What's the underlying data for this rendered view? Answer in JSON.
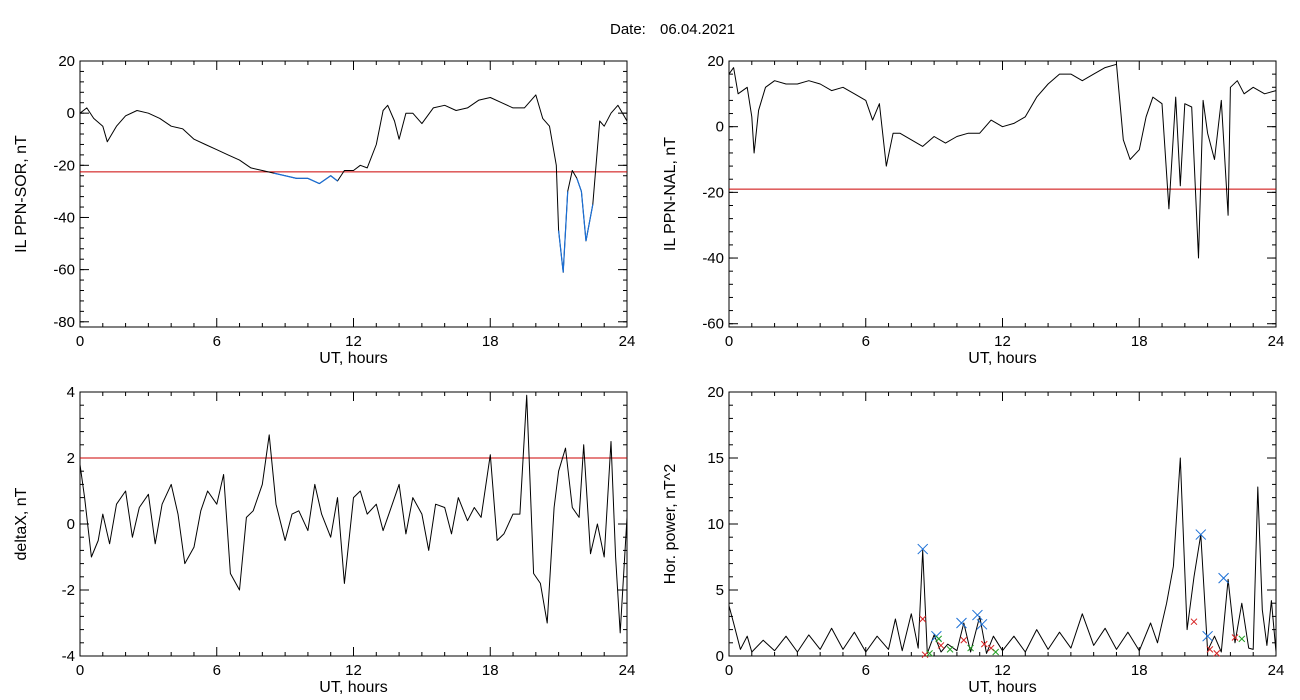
{
  "header": {
    "label": "Date:",
    "date": "06.04.2021"
  },
  "colors": {
    "trace": "#000000",
    "threshold": "#cc0000",
    "highlight": "#1a6fd6",
    "marker_blue": "#1a6fd6",
    "marker_red": "#d62020",
    "marker_green": "#22a022"
  },
  "chart_data": [
    {
      "id": "sor",
      "type": "line",
      "xlabel": "UT, hours",
      "ylabel": "IL PPN-SOR, nT",
      "xlim": [
        0,
        24
      ],
      "ylim": [
        -82,
        20
      ],
      "xticks": [
        0,
        6,
        12,
        18,
        24
      ],
      "yticks": [
        20,
        0,
        -20,
        -40,
        -60,
        -80
      ],
      "threshold": -22.5,
      "highlight_below_threshold": true,
      "x": [
        0,
        0.3,
        0.6,
        1.0,
        1.2,
        1.6,
        2.0,
        2.5,
        3.0,
        3.5,
        4.0,
        4.5,
        5.0,
        5.5,
        6.0,
        6.5,
        7.0,
        7.5,
        8.0,
        8.5,
        9.0,
        9.5,
        10.0,
        10.5,
        11.0,
        11.3,
        11.6,
        12.0,
        12.3,
        12.6,
        13.0,
        13.3,
        13.5,
        13.8,
        14.0,
        14.3,
        14.6,
        15.0,
        15.5,
        16.0,
        16.5,
        17.0,
        17.5,
        18.0,
        18.5,
        19.0,
        19.5,
        20.0,
        20.3,
        20.6,
        20.9,
        21.0,
        21.2,
        21.4,
        21.6,
        21.8,
        22.0,
        22.2,
        22.5,
        22.8,
        23.0,
        23.3,
        23.6,
        24.0
      ],
      "y": [
        0,
        2,
        -2,
        -5,
        -11,
        -5,
        -1,
        1,
        0,
        -2,
        -5,
        -6,
        -10,
        -12,
        -14,
        -16,
        -18,
        -21,
        -22,
        -23,
        -24,
        -25,
        -25,
        -27,
        -24,
        -26,
        -22,
        -22,
        -20,
        -21,
        -12,
        1,
        3,
        -3,
        -10,
        0,
        0,
        -4,
        2,
        3,
        1,
        2,
        5,
        6,
        4,
        2,
        2,
        7,
        -2,
        -5,
        -20,
        -45,
        -61,
        -30,
        -22,
        -25,
        -30,
        -49,
        -35,
        -3,
        -5,
        0,
        3,
        -3
      ],
      "x_points_note": "",
      "y_points_note": ""
    },
    {
      "id": "nal",
      "type": "line",
      "xlabel": "UT, hours",
      "ylabel": "IL PPN-NAL, nT",
      "xlim": [
        0,
        24
      ],
      "ylim": [
        -61,
        20
      ],
      "xticks": [
        0,
        6,
        12,
        18,
        24
      ],
      "yticks": [
        20,
        0,
        -20,
        -40,
        -60
      ],
      "threshold": -19,
      "highlight_below_threshold": true,
      "x": [
        0,
        0.2,
        0.4,
        0.8,
        1.0,
        1.1,
        1.3,
        1.6,
        2.0,
        2.5,
        3.0,
        3.5,
        4.0,
        4.5,
        5.0,
        5.5,
        6.0,
        6.3,
        6.6,
        6.9,
        7.2,
        7.5,
        8.0,
        8.5,
        9.0,
        9.5,
        10.0,
        10.5,
        11.0,
        11.5,
        12.0,
        12.5,
        13.0,
        13.5,
        14.0,
        14.5,
        15.0,
        15.5,
        16.0,
        16.5,
        17.0,
        17.3,
        17.6,
        18.0,
        18.3,
        18.6,
        19.0,
        19.3,
        19.6,
        19.8,
        20.0,
        20.3,
        20.6,
        20.8,
        21.0,
        21.3,
        21.6,
        21.9,
        22.0,
        22.3,
        22.6,
        23.0,
        23.5,
        24.0
      ],
      "y": [
        16,
        18,
        10,
        12,
        3,
        -8,
        5,
        12,
        14,
        13,
        13,
        14,
        13,
        11,
        12,
        10,
        8,
        2,
        7,
        -12,
        -2,
        -2,
        -4,
        -6,
        -3,
        -5,
        -3,
        -2,
        -2,
        2,
        0,
        1,
        3,
        9,
        13,
        16,
        16,
        14,
        16,
        18,
        19,
        -4,
        -10,
        -7,
        3,
        9,
        7,
        -25,
        9,
        -18,
        7,
        6,
        -40,
        8,
        -2,
        -10,
        8,
        -27,
        12,
        14,
        10,
        12,
        10,
        11
      ]
    },
    {
      "id": "deltax",
      "type": "line",
      "xlabel": "UT, hours",
      "ylabel": "deltaX, nT",
      "xlim": [
        0,
        24
      ],
      "ylim": [
        -4,
        4
      ],
      "xticks": [
        0,
        6,
        12,
        18,
        24
      ],
      "yticks": [
        4,
        2,
        0,
        -2,
        -4
      ],
      "threshold": 2,
      "highlight_below_threshold": false,
      "x": [
        0,
        0.2,
        0.5,
        0.8,
        1.0,
        1.3,
        1.6,
        2.0,
        2.3,
        2.6,
        3.0,
        3.3,
        3.6,
        4.0,
        4.3,
        4.6,
        5.0,
        5.3,
        5.6,
        6.0,
        6.3,
        6.6,
        7.0,
        7.3,
        7.6,
        8.0,
        8.3,
        8.6,
        9.0,
        9.3,
        9.6,
        10.0,
        10.3,
        10.6,
        11.0,
        11.3,
        11.6,
        12.0,
        12.3,
        12.6,
        13.0,
        13.3,
        13.6,
        14.0,
        14.3,
        14.6,
        15.0,
        15.3,
        15.6,
        16.0,
        16.3,
        16.6,
        17.0,
        17.3,
        17.6,
        18.0,
        18.3,
        18.6,
        19.0,
        19.3,
        19.6,
        19.9,
        20.2,
        20.5,
        20.8,
        21.0,
        21.3,
        21.6,
        21.9,
        22.1,
        22.4,
        22.7,
        23.0,
        23.3,
        23.5,
        23.7,
        24.0
      ],
      "y": [
        1.8,
        0.8,
        -1.0,
        -0.5,
        0.3,
        -0.6,
        0.6,
        1.0,
        -0.4,
        0.5,
        0.9,
        -0.6,
        0.6,
        1.2,
        0.3,
        -1.2,
        -0.7,
        0.4,
        1.0,
        0.6,
        1.5,
        -1.5,
        -2.0,
        0.2,
        0.4,
        1.2,
        2.7,
        0.6,
        -0.5,
        0.3,
        0.4,
        -0.2,
        1.2,
        0.3,
        -0.4,
        0.8,
        -1.8,
        0.8,
        1.0,
        0.3,
        0.6,
        -0.2,
        0.4,
        1.2,
        -0.3,
        0.8,
        0.3,
        -0.8,
        0.6,
        0.5,
        -0.3,
        0.8,
        0.1,
        0.5,
        0.2,
        2.1,
        -0.5,
        -0.3,
        0.3,
        0.3,
        3.9,
        -1.5,
        -1.8,
        -3.0,
        0.5,
        1.6,
        2.3,
        0.5,
        0.2,
        2.4,
        -0.9,
        0.0,
        -1.0,
        2.5,
        -1.0,
        -3.3,
        0.2
      ]
    },
    {
      "id": "power",
      "type": "line",
      "xlabel": "UT, hours",
      "ylabel": "Hor. power, nT^2",
      "xlim": [
        0,
        24
      ],
      "ylim": [
        0,
        20
      ],
      "xticks": [
        0,
        6,
        12,
        18,
        24
      ],
      "yticks": [
        20,
        15,
        10,
        5,
        0
      ],
      "x": [
        0,
        0.2,
        0.5,
        0.8,
        1.0,
        1.5,
        2.0,
        2.5,
        3.0,
        3.5,
        4.0,
        4.5,
        5.0,
        5.5,
        6.0,
        6.5,
        7.0,
        7.3,
        7.6,
        8.0,
        8.3,
        8.5,
        8.7,
        9.0,
        9.3,
        9.6,
        10.0,
        10.3,
        10.6,
        11.0,
        11.3,
        11.6,
        12.0,
        12.5,
        13.0,
        13.5,
        14.0,
        14.5,
        15.0,
        15.5,
        16.0,
        16.5,
        17.0,
        17.5,
        18.0,
        18.5,
        18.8,
        19.2,
        19.5,
        19.8,
        20.1,
        20.4,
        20.7,
        21.0,
        21.3,
        21.6,
        21.9,
        22.2,
        22.5,
        22.8,
        23.0,
        23.2,
        23.4,
        23.6,
        23.8,
        24.0
      ],
      "y": [
        3.8,
        2.5,
        0.5,
        1.5,
        0.3,
        1.2,
        0.4,
        1.5,
        0.3,
        1.6,
        0.5,
        2.1,
        0.5,
        1.8,
        0.3,
        1.5,
        0.5,
        2.8,
        0.4,
        3.2,
        0.6,
        8.0,
        0.2,
        1.6,
        0.3,
        0.9,
        0.4,
        2.5,
        0.3,
        3.0,
        0.2,
        1.5,
        0.4,
        1.5,
        0.3,
        2.0,
        0.5,
        1.8,
        0.6,
        3.2,
        0.8,
        2.1,
        0.5,
        1.8,
        0.4,
        2.5,
        1.0,
        4.0,
        6.8,
        15.0,
        2.0,
        6.0,
        9.2,
        0.4,
        1.5,
        0.3,
        5.8,
        1.0,
        4.0,
        0.6,
        0.5,
        12.8,
        3.5,
        0.8,
        4.2,
        0.3
      ],
      "markers": [
        {
          "x": 8.5,
          "y": 8.1,
          "color": "blue"
        },
        {
          "x": 9.1,
          "y": 1.5,
          "color": "blue"
        },
        {
          "x": 10.2,
          "y": 2.5,
          "color": "blue"
        },
        {
          "x": 10.9,
          "y": 3.1,
          "color": "blue"
        },
        {
          "x": 11.1,
          "y": 2.4,
          "color": "blue"
        },
        {
          "x": 20.7,
          "y": 9.2,
          "color": "blue"
        },
        {
          "x": 21.0,
          "y": 1.5,
          "color": "blue"
        },
        {
          "x": 21.7,
          "y": 5.9,
          "color": "blue"
        },
        {
          "x": 8.5,
          "y": 2.8,
          "color": "red"
        },
        {
          "x": 8.6,
          "y": 0.1,
          "color": "red"
        },
        {
          "x": 9.3,
          "y": 0.8,
          "color": "red"
        },
        {
          "x": 10.3,
          "y": 1.2,
          "color": "red"
        },
        {
          "x": 11.2,
          "y": 0.9,
          "color": "red"
        },
        {
          "x": 11.5,
          "y": 0.6,
          "color": "red"
        },
        {
          "x": 20.4,
          "y": 2.6,
          "color": "red"
        },
        {
          "x": 21.1,
          "y": 0.5,
          "color": "red"
        },
        {
          "x": 21.4,
          "y": 0.2,
          "color": "red"
        },
        {
          "x": 22.2,
          "y": 1.4,
          "color": "red"
        },
        {
          "x": 8.8,
          "y": 0.2,
          "color": "green"
        },
        {
          "x": 9.2,
          "y": 1.3,
          "color": "green"
        },
        {
          "x": 9.7,
          "y": 0.5,
          "color": "green"
        },
        {
          "x": 10.6,
          "y": 0.6,
          "color": "green"
        },
        {
          "x": 11.7,
          "y": 0.3,
          "color": "green"
        },
        {
          "x": 22.5,
          "y": 1.3,
          "color": "green"
        }
      ]
    }
  ]
}
